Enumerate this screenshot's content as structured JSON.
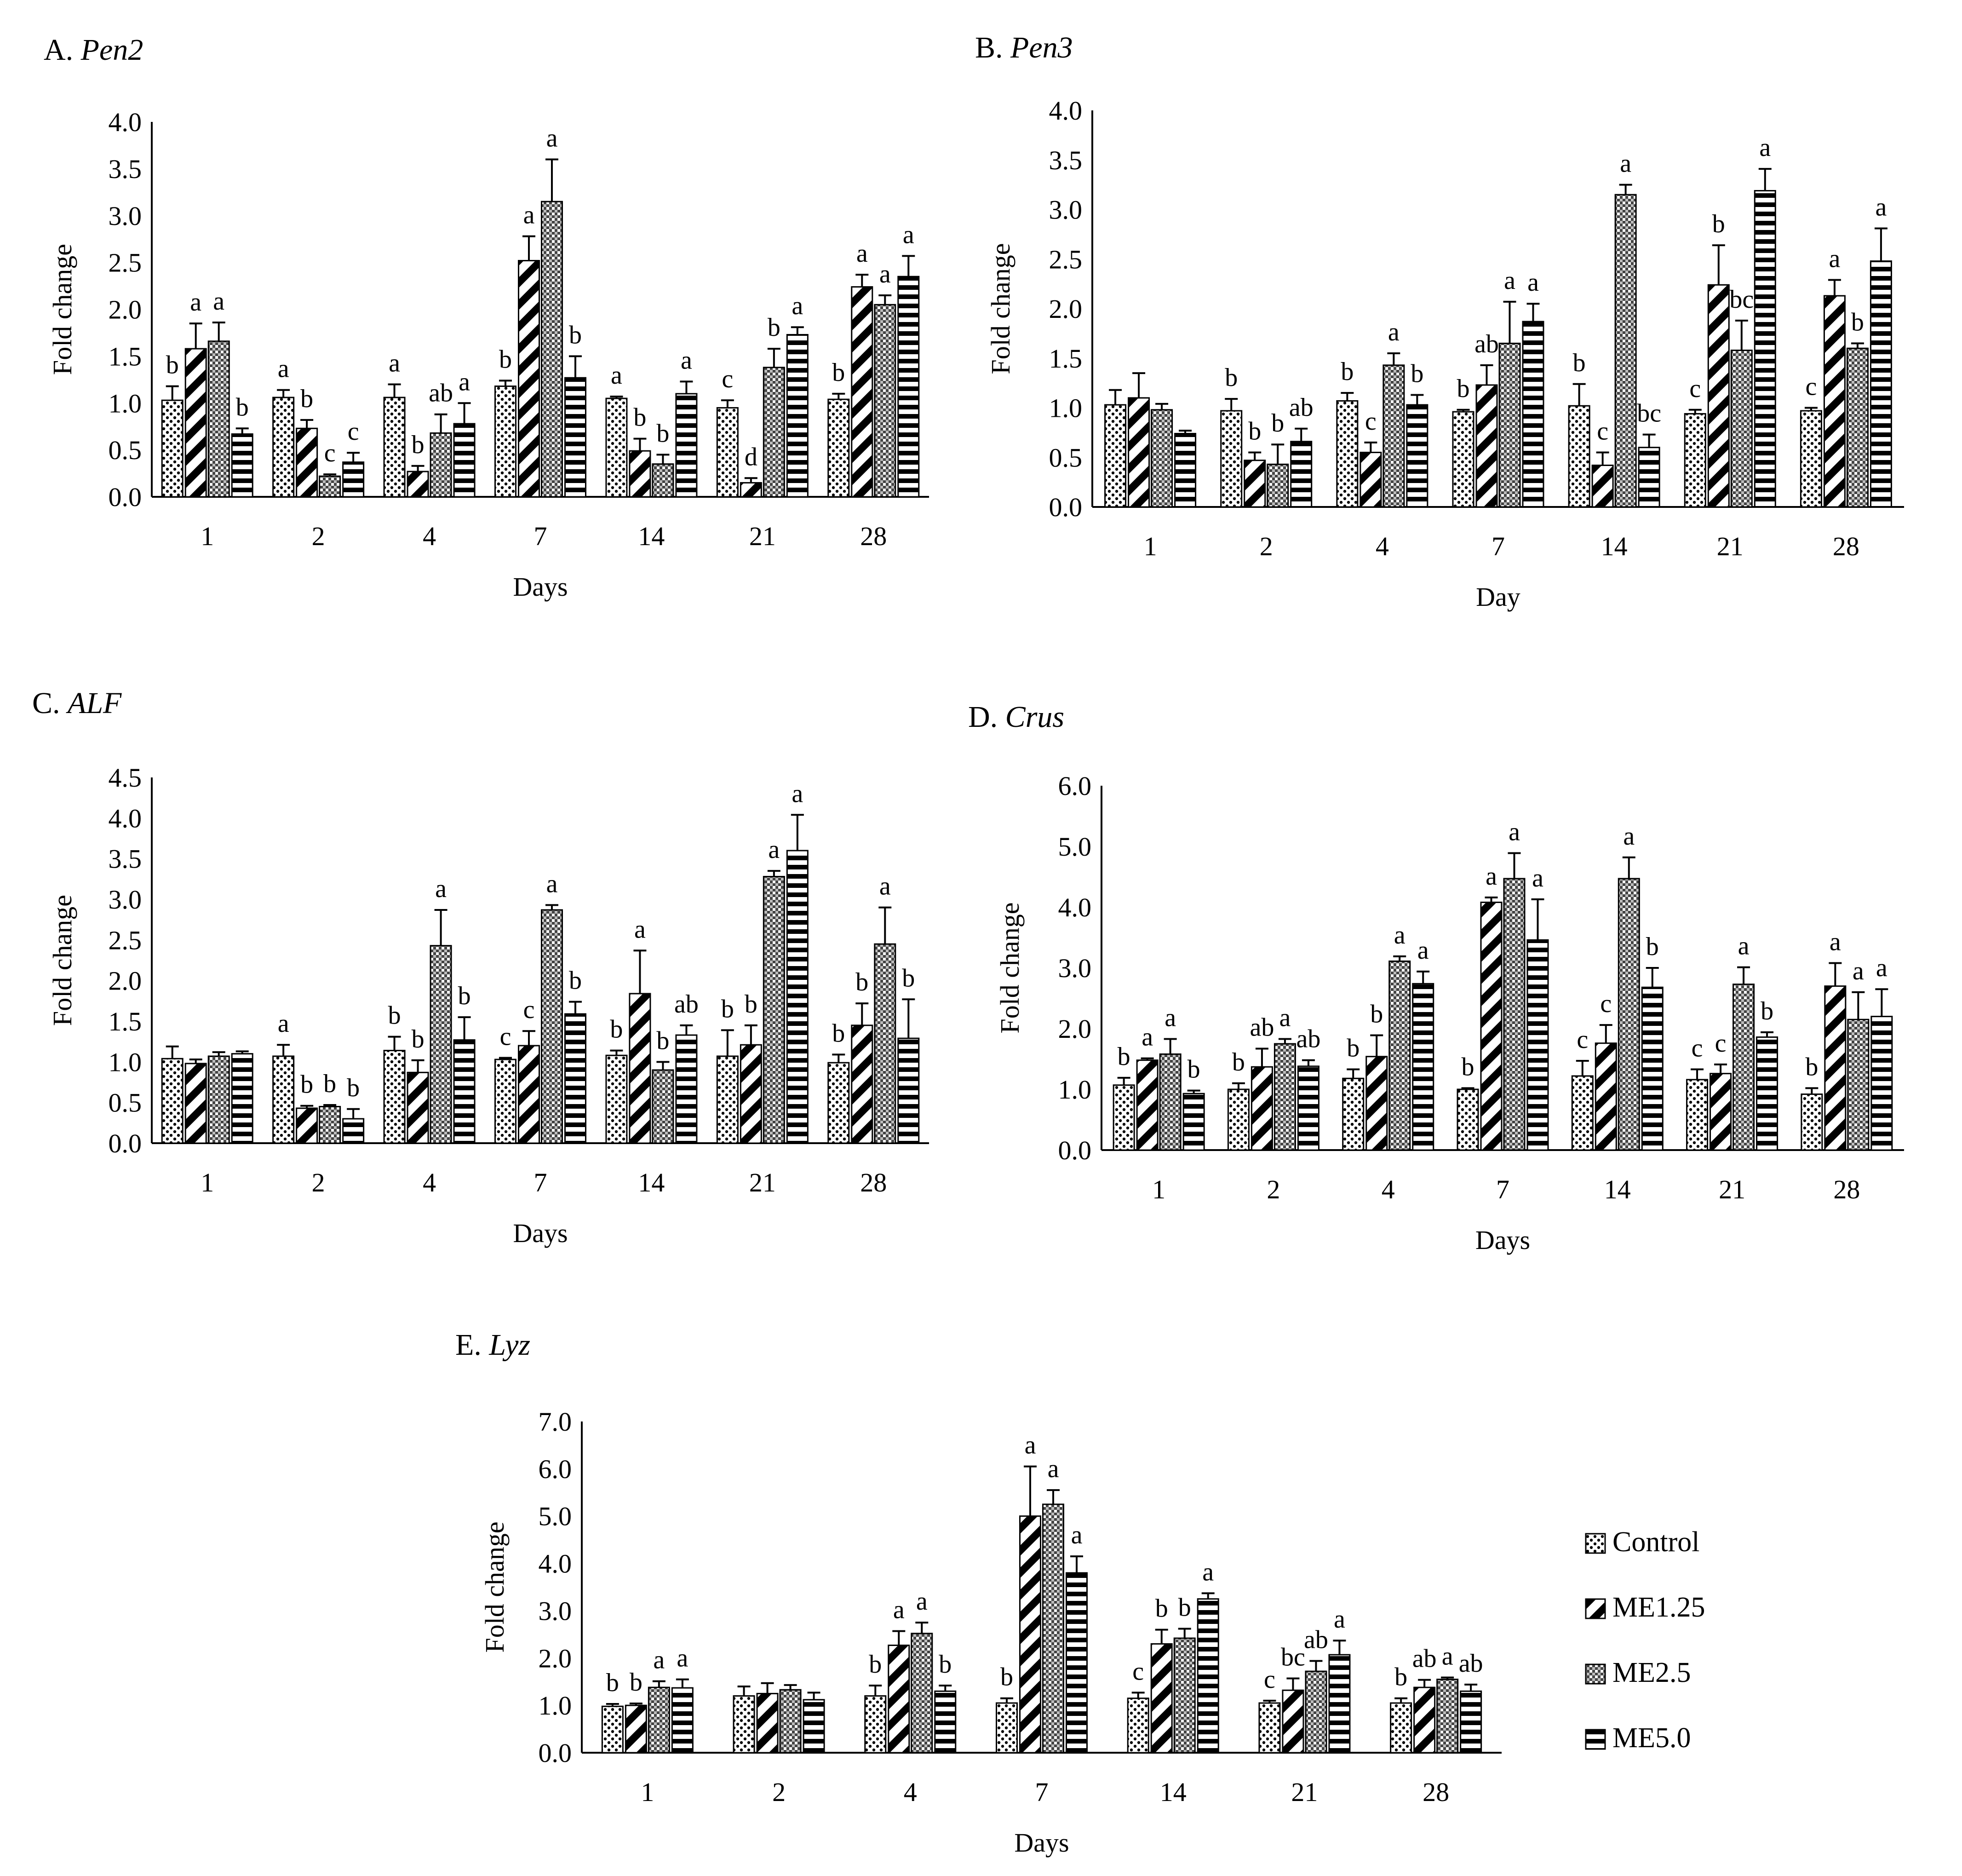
{
  "series_names": [
    "Control",
    "ME1.25",
    "ME2.5",
    "ME5.0"
  ],
  "legend_items": [
    {
      "label": "Control",
      "pattern": "dots"
    },
    {
      "label": "ME1.25",
      "pattern": "diag"
    },
    {
      "label": "ME2.5",
      "pattern": "cross"
    },
    {
      "label": "ME5.0",
      "pattern": "horiz"
    }
  ],
  "chart_data": [
    {
      "id": "pen2",
      "type": "bar",
      "title_prefix": "A.",
      "title_gene": "Pen2",
      "xlabel": "Days",
      "ylabel": "Fold change",
      "ylim": [
        0,
        4.0
      ],
      "yticks": [
        "0.0",
        "0.5",
        "1.0",
        "1.5",
        "2.0",
        "2.5",
        "3.0",
        "3.5",
        "4.0"
      ],
      "categories": [
        "1",
        "2",
        "4",
        "7",
        "14",
        "21",
        "28"
      ],
      "series": [
        {
          "name": "Control",
          "values": [
            1.03,
            1.06,
            1.06,
            1.18,
            1.05,
            0.95,
            1.04
          ],
          "errors": [
            0.15,
            0.08,
            0.14,
            0.06,
            0.02,
            0.08,
            0.06
          ],
          "letters": [
            "b",
            "a",
            "a",
            "b",
            "a",
            "c",
            "b"
          ]
        },
        {
          "name": "ME1.25",
          "values": [
            1.58,
            0.73,
            0.27,
            2.52,
            0.49,
            0.15,
            2.24
          ],
          "errors": [
            0.27,
            0.09,
            0.06,
            0.26,
            0.13,
            0.05,
            0.13
          ],
          "letters": [
            "a",
            "b",
            "b",
            "a",
            "b",
            "d",
            "a"
          ]
        },
        {
          "name": "ME2.5",
          "values": [
            1.66,
            0.22,
            0.68,
            3.15,
            0.35,
            1.38,
            2.05
          ],
          "errors": [
            0.2,
            0.02,
            0.2,
            0.45,
            0.1,
            0.2,
            0.1
          ],
          "letters": [
            "a",
            "c",
            "ab",
            "a",
            "b",
            "b",
            "a"
          ]
        },
        {
          "name": "ME5.0",
          "values": [
            0.67,
            0.37,
            0.78,
            1.27,
            1.1,
            1.73,
            2.35
          ],
          "errors": [
            0.06,
            0.1,
            0.22,
            0.23,
            0.13,
            0.08,
            0.22
          ],
          "letters": [
            "b",
            "c",
            "a",
            "b",
            "a",
            "a",
            "a"
          ]
        }
      ]
    },
    {
      "id": "pen3",
      "type": "bar",
      "title_prefix": "B.",
      "title_gene": "Pen3",
      "xlabel": "Day",
      "ylabel": "Fold change",
      "ylim": [
        0,
        4.0
      ],
      "yticks": [
        "0.0",
        "0.5",
        "1.0",
        "1.5",
        "2.0",
        "2.5",
        "3.0",
        "3.5",
        "4.0"
      ],
      "categories": [
        "1",
        "2",
        "4",
        "7",
        "14",
        "21",
        "28"
      ],
      "series": [
        {
          "name": "Control",
          "values": [
            1.03,
            0.97,
            1.07,
            0.96,
            1.02,
            0.94,
            0.97
          ],
          "errors": [
            0.15,
            0.12,
            0.08,
            0.02,
            0.22,
            0.04,
            0.03
          ],
          "letters": [
            "",
            "b",
            "b",
            "b",
            "b",
            "c",
            "c"
          ]
        },
        {
          "name": "ME1.25",
          "values": [
            1.1,
            0.47,
            0.55,
            1.23,
            0.42,
            2.24,
            2.13
          ],
          "errors": [
            0.25,
            0.08,
            0.1,
            0.2,
            0.13,
            0.4,
            0.16
          ],
          "letters": [
            "",
            "b",
            "c",
            "ab",
            "c",
            "b",
            "a"
          ]
        },
        {
          "name": "ME2.5",
          "values": [
            0.98,
            0.43,
            1.43,
            1.65,
            3.15,
            1.58,
            1.6
          ],
          "errors": [
            0.06,
            0.2,
            0.12,
            0.42,
            0.1,
            0.3,
            0.05
          ],
          "letters": [
            "",
            "b",
            "a",
            "a",
            "a",
            "bc",
            "b"
          ]
        },
        {
          "name": "ME5.0",
          "values": [
            0.74,
            0.66,
            1.03,
            1.87,
            0.6,
            3.19,
            2.48
          ],
          "errors": [
            0.03,
            0.13,
            0.1,
            0.18,
            0.13,
            0.22,
            0.33
          ],
          "letters": [
            "",
            "ab",
            "b",
            "a",
            "bc",
            "a",
            "a"
          ]
        }
      ]
    },
    {
      "id": "alf",
      "type": "bar",
      "title_prefix": "C.",
      "title_gene": "ALF",
      "xlabel": "Days",
      "ylabel": "Fold change",
      "ylim": [
        0,
        4.5
      ],
      "yticks": [
        "0.0",
        "0.5",
        "1.0",
        "1.5",
        "2.0",
        "2.5",
        "3.0",
        "3.5",
        "4.0",
        "4.5"
      ],
      "categories": [
        "1",
        "2",
        "4",
        "7",
        "14",
        "21",
        "28"
      ],
      "series": [
        {
          "name": "Control",
          "values": [
            1.04,
            1.07,
            1.14,
            1.03,
            1.08,
            1.07,
            0.99
          ],
          "errors": [
            0.15,
            0.14,
            0.17,
            0.02,
            0.06,
            0.32,
            0.1
          ],
          "letters": [
            "",
            "a",
            "b",
            "c",
            "b",
            "b",
            "b"
          ]
        },
        {
          "name": "ME1.25",
          "values": [
            0.98,
            0.43,
            0.87,
            1.2,
            1.84,
            1.21,
            1.45
          ],
          "errors": [
            0.05,
            0.03,
            0.15,
            0.18,
            0.53,
            0.24,
            0.27
          ],
          "letters": [
            "",
            "b",
            "b",
            "c",
            "a",
            "b",
            "b"
          ]
        },
        {
          "name": "ME2.5",
          "values": [
            1.07,
            0.45,
            2.43,
            2.87,
            0.9,
            3.28,
            2.45
          ],
          "errors": [
            0.05,
            0.02,
            0.44,
            0.06,
            0.1,
            0.07,
            0.45
          ],
          "letters": [
            "",
            "b",
            "a",
            "a",
            "b",
            "a",
            "a"
          ]
        },
        {
          "name": "ME5.0",
          "values": [
            1.1,
            0.3,
            1.27,
            1.59,
            1.33,
            3.6,
            1.29
          ],
          "errors": [
            0.03,
            0.12,
            0.28,
            0.15,
            0.12,
            0.44,
            0.48
          ],
          "letters": [
            "",
            "b",
            "b",
            "b",
            "ab",
            "a",
            "b"
          ]
        }
      ]
    },
    {
      "id": "crus",
      "type": "bar",
      "title_prefix": "D.",
      "title_gene": "Crus",
      "xlabel": "Days",
      "ylabel": "Fold change",
      "ylim": [
        0,
        6.0
      ],
      "yticks": [
        "0.0",
        "1.0",
        "2.0",
        "3.0",
        "4.0",
        "5.0",
        "6.0"
      ],
      "categories": [
        "1",
        "2",
        "4",
        "7",
        "14",
        "21",
        "28"
      ],
      "series": [
        {
          "name": "Control",
          "values": [
            1.07,
            1.0,
            1.18,
            1.0,
            1.22,
            1.16,
            0.92
          ],
          "errors": [
            0.12,
            0.1,
            0.15,
            0.02,
            0.25,
            0.17,
            0.1
          ],
          "letters": [
            "b",
            "b",
            "b",
            "b",
            "c",
            "c",
            "b"
          ]
        },
        {
          "name": "ME1.25",
          "values": [
            1.48,
            1.37,
            1.54,
            4.08,
            1.76,
            1.26,
            2.7
          ],
          "errors": [
            0.03,
            0.3,
            0.35,
            0.08,
            0.3,
            0.15,
            0.38
          ],
          "letters": [
            "a",
            "ab",
            "b",
            "a",
            "c",
            "c",
            "a"
          ]
        },
        {
          "name": "ME2.5",
          "values": [
            1.58,
            1.75,
            3.11,
            4.47,
            4.47,
            2.73,
            2.15
          ],
          "errors": [
            0.25,
            0.08,
            0.08,
            0.42,
            0.35,
            0.28,
            0.45
          ],
          "letters": [
            "a",
            "a",
            "a",
            "a",
            "a",
            "a",
            "a"
          ]
        },
        {
          "name": "ME5.0",
          "values": [
            0.93,
            1.38,
            2.74,
            3.46,
            2.68,
            1.86,
            2.2
          ],
          "errors": [
            0.05,
            0.1,
            0.2,
            0.67,
            0.32,
            0.08,
            0.45
          ],
          "letters": [
            "b",
            "ab",
            "a",
            "a",
            "b",
            "b",
            "a"
          ]
        }
      ]
    },
    {
      "id": "lyz",
      "type": "bar",
      "title_prefix": "E.",
      "title_gene": "Lyz",
      "xlabel": "Days",
      "ylabel": "Fold change",
      "ylim": [
        0,
        7.0
      ],
      "yticks": [
        "0.0",
        "1.0",
        "2.0",
        "3.0",
        "4.0",
        "5.0",
        "6.0",
        "7.0"
      ],
      "categories": [
        "1",
        "2",
        "4",
        "7",
        "14",
        "21",
        "28"
      ],
      "series": [
        {
          "name": "Control",
          "values": [
            0.98,
            1.2,
            1.2,
            1.05,
            1.15,
            1.05,
            1.05
          ],
          "errors": [
            0.05,
            0.2,
            0.22,
            0.1,
            0.12,
            0.05,
            0.1
          ],
          "letters": [
            "b",
            "",
            "b",
            "b",
            "c",
            "c",
            "b"
          ]
        },
        {
          "name": "ME1.25",
          "values": [
            1.0,
            1.25,
            2.27,
            5.0,
            2.3,
            1.32,
            1.38
          ],
          "errors": [
            0.04,
            0.22,
            0.3,
            1.05,
            0.3,
            0.25,
            0.16
          ],
          "letters": [
            "b",
            "",
            "a",
            "a",
            "b",
            "bc",
            "ab"
          ]
        },
        {
          "name": "ME2.5",
          "values": [
            1.38,
            1.33,
            2.52,
            5.25,
            2.42,
            1.72,
            1.55
          ],
          "errors": [
            0.13,
            0.1,
            0.23,
            0.3,
            0.2,
            0.22,
            0.04
          ],
          "letters": [
            "a",
            "",
            "a",
            "a",
            "b",
            "ab",
            "a"
          ]
        },
        {
          "name": "ME5.0",
          "values": [
            1.37,
            1.12,
            1.3,
            3.8,
            3.25,
            2.07,
            1.3
          ],
          "errors": [
            0.18,
            0.15,
            0.12,
            0.35,
            0.12,
            0.3,
            0.14
          ],
          "letters": [
            "a",
            "",
            "b",
            "a",
            "a",
            "a",
            "ab"
          ]
        }
      ]
    }
  ]
}
